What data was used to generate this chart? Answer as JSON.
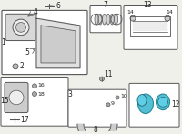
{
  "bg_color": "#f0f0eb",
  "line_color": "#555555",
  "highlight_color": "#40b8d0",
  "box_bg": "#ffffff",
  "label_fontsize": 5.5,
  "label_color": "#222222"
}
